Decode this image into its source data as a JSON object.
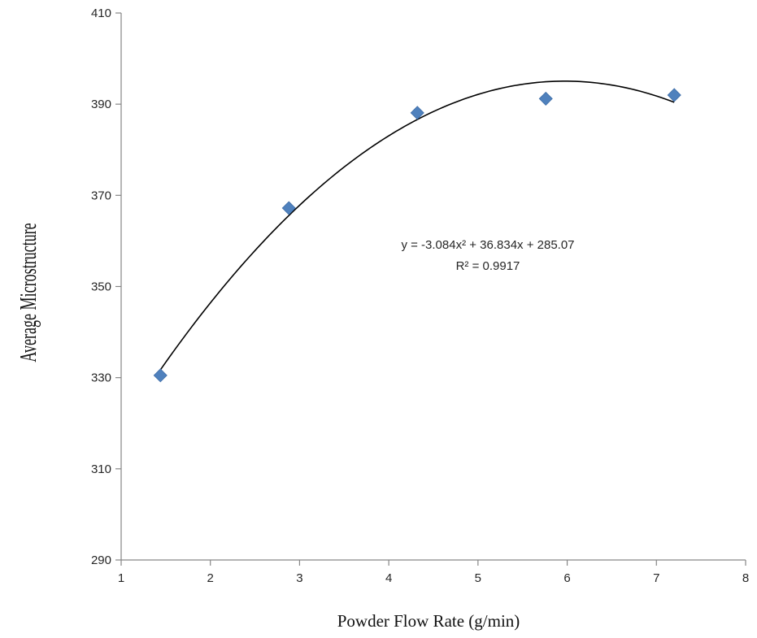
{
  "chart_data": {
    "type": "scatter",
    "xlabel": "Powder Flow Rate (g/min)",
    "ylabel": "Average Microstructure",
    "xlim": [
      1,
      8
    ],
    "ylim": [
      290,
      410
    ],
    "xticks": [
      1,
      2,
      3,
      4,
      5,
      6,
      7,
      8
    ],
    "yticks": [
      290,
      310,
      330,
      350,
      370,
      390,
      410
    ],
    "grid": false,
    "legend": "none",
    "series": [
      {
        "marker": "diamond",
        "color": "#4f81bd",
        "points": [
          {
            "x": 1.44,
            "y": 330.5
          },
          {
            "x": 2.88,
            "y": 367.2
          },
          {
            "x": 4.32,
            "y": 388.1
          },
          {
            "x": 5.76,
            "y": 391.2
          },
          {
            "x": 7.2,
            "y": 392.0
          }
        ]
      }
    ],
    "trendline": {
      "type": "polynomial",
      "coefficients": {
        "a": -3.084,
        "b": 36.834,
        "c": 285.07
      },
      "x_range": [
        1.44,
        7.2
      ],
      "color": "#000000",
      "equation_text": "y = -3.084x² + 36.834x + 285.07",
      "r2_text": "R² = 0.9917"
    }
  }
}
